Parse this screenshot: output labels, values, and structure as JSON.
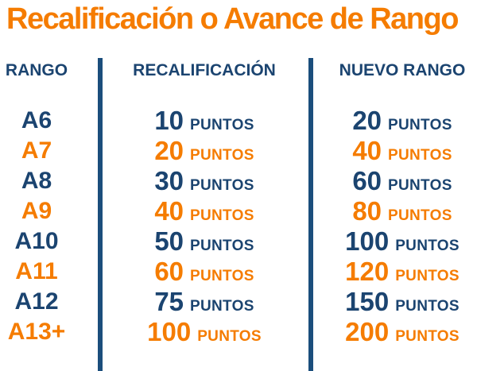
{
  "title": "Recalificación o Avance de Rango",
  "unit_label": "PUNTOS",
  "colors": {
    "orange": "#F57C00",
    "navy": "#1B4470",
    "divider": "#1B4E7C"
  },
  "chart_data": {
    "type": "table",
    "title": "Recalificación o Avance de Rango",
    "columns": [
      "RANGO",
      "RECALIFICACIÓN",
      "NUEVO RANGO"
    ],
    "unit": "PUNTOS",
    "rows": [
      {
        "rango": "A6",
        "recalificacion_puntos": 10,
        "nuevo_rango_puntos": 20
      },
      {
        "rango": "A7",
        "recalificacion_puntos": 20,
        "nuevo_rango_puntos": 40
      },
      {
        "rango": "A8",
        "recalificacion_puntos": 30,
        "nuevo_rango_puntos": 60
      },
      {
        "rango": "A9",
        "recalificacion_puntos": 40,
        "nuevo_rango_puntos": 80
      },
      {
        "rango": "A10",
        "recalificacion_puntos": 50,
        "nuevo_rango_puntos": 100
      },
      {
        "rango": "A11",
        "recalificacion_puntos": 60,
        "nuevo_rango_puntos": 120
      },
      {
        "rango": "A12",
        "recalificacion_puntos": 75,
        "nuevo_rango_puntos": 150
      },
      {
        "rango": "A13+",
        "recalificacion_puntos": 100,
        "nuevo_rango_puntos": 200
      }
    ],
    "row_color_pattern": [
      "navy",
      "orange"
    ]
  }
}
